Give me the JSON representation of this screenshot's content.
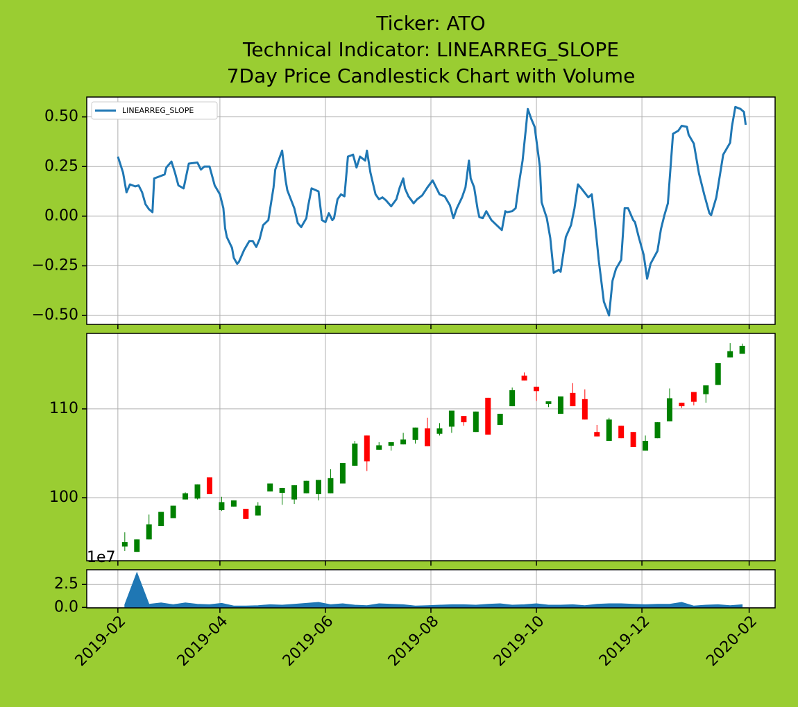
{
  "chart_data": [
    {
      "type": "line",
      "title": [
        "Ticker: ATO",
        "Technical Indicator: LINEARREG_SLOPE",
        "7Day Price Candlestick Chart with Volume"
      ],
      "legend": "upper left",
      "grid": true,
      "x": [
        "2019-02-01",
        "2019-02-04",
        "2019-02-06",
        "2019-02-08",
        "2019-02-11",
        "2019-02-13",
        "2019-02-15",
        "2019-02-17",
        "2019-02-19",
        "2019-02-21",
        "2019-02-22",
        "2019-02-25",
        "2019-02-28",
        "2019-03-01",
        "2019-03-04",
        "2019-03-06",
        "2019-03-08",
        "2019-03-11",
        "2019-03-14",
        "2019-03-19",
        "2019-03-21",
        "2019-03-23",
        "2019-03-26",
        "2019-03-29",
        "2019-04-01",
        "2019-04-03",
        "2019-04-04",
        "2019-04-05",
        "2019-04-08",
        "2019-04-09",
        "2019-04-11",
        "2019-04-12",
        "2019-04-15",
        "2019-04-18",
        "2019-04-20",
        "2019-04-22",
        "2019-04-24",
        "2019-04-26",
        "2019-04-29",
        "2019-05-02",
        "2019-05-03",
        "2019-05-07",
        "2019-05-09",
        "2019-05-10",
        "2019-05-14",
        "2019-05-16",
        "2019-05-18",
        "2019-05-21",
        "2019-05-22",
        "2019-05-24",
        "2019-05-28",
        "2019-05-30",
        "2019-06-01",
        "2019-06-03",
        "2019-06-05",
        "2019-06-06",
        "2019-06-08",
        "2019-06-10",
        "2019-06-12",
        "2019-06-14",
        "2019-06-17",
        "2019-06-19",
        "2019-06-21",
        "2019-06-24",
        "2019-06-25",
        "2019-06-27",
        "2019-06-30",
        "2019-07-02",
        "2019-07-04",
        "2019-07-06",
        "2019-07-09",
        "2019-07-12",
        "2019-07-14",
        "2019-07-16",
        "2019-07-17",
        "2019-07-19",
        "2019-07-22",
        "2019-07-24",
        "2019-07-27",
        "2019-07-30",
        "2019-08-02",
        "2019-08-06",
        "2019-08-09",
        "2019-08-12",
        "2019-08-14",
        "2019-08-16",
        "2019-08-19",
        "2019-08-21",
        "2019-08-23",
        "2019-08-24",
        "2019-08-26",
        "2019-08-28",
        "2019-08-29",
        "2019-08-31",
        "2019-09-02",
        "2019-09-05",
        "2019-09-08",
        "2019-09-11",
        "2019-09-13",
        "2019-09-14",
        "2019-09-17",
        "2019-09-19",
        "2019-09-21",
        "2019-09-23",
        "2019-09-25",
        "2019-09-26",
        "2019-09-28",
        "2019-09-30",
        "2019-10-03",
        "2019-10-04",
        "2019-10-07",
        "2019-10-09",
        "2019-10-11",
        "2019-10-14",
        "2019-10-15",
        "2019-10-18",
        "2019-10-21",
        "2019-10-23",
        "2019-10-25",
        "2019-10-27",
        "2019-10-31",
        "2019-11-02",
        "2019-11-04",
        "2019-11-06",
        "2019-11-09",
        "2019-11-12",
        "2019-11-14",
        "2019-11-16",
        "2019-11-19",
        "2019-11-21",
        "2019-11-23",
        "2019-11-26",
        "2019-11-27",
        "2019-11-29",
        "2019-12-02",
        "2019-12-04",
        "2019-12-06",
        "2019-12-10",
        "2019-12-12",
        "2019-12-14",
        "2019-12-16",
        "2019-12-19",
        "2019-12-22",
        "2019-12-24",
        "2019-12-27",
        "2019-12-28",
        "2019-12-31",
        "2020-01-03",
        "2020-01-06",
        "2020-01-09",
        "2020-01-10",
        "2020-01-13",
        "2020-01-17",
        "2020-01-21",
        "2020-01-22",
        "2020-01-24",
        "2020-01-27",
        "2020-01-29",
        "2020-01-30"
      ],
      "series": [
        {
          "name": "LINEARREG_SLOPE",
          "color": "#1f77b4",
          "values": [
            0.3,
            0.22,
            0.12,
            0.16,
            0.15,
            0.155,
            0.12,
            0.06,
            0.035,
            0.02,
            0.19,
            0.2,
            0.21,
            0.245,
            0.275,
            0.22,
            0.155,
            0.14,
            0.265,
            0.27,
            0.235,
            0.25,
            0.25,
            0.155,
            0.11,
            0.04,
            -0.06,
            -0.105,
            -0.16,
            -0.21,
            -0.24,
            -0.23,
            -0.17,
            -0.125,
            -0.125,
            -0.155,
            -0.115,
            -0.045,
            -0.02,
            0.145,
            0.235,
            0.33,
            0.18,
            0.13,
            0.04,
            -0.035,
            -0.055,
            -0.01,
            0.05,
            0.14,
            0.125,
            -0.02,
            -0.03,
            0.015,
            -0.02,
            -0.01,
            0.085,
            0.11,
            0.1,
            0.3,
            0.31,
            0.245,
            0.3,
            0.28,
            0.33,
            0.22,
            0.11,
            0.085,
            0.095,
            0.08,
            0.05,
            0.085,
            0.145,
            0.19,
            0.14,
            0.1,
            0.065,
            0.085,
            0.105,
            0.145,
            0.18,
            0.11,
            0.1,
            0.055,
            -0.01,
            0.04,
            0.095,
            0.145,
            0.28,
            0.19,
            0.145,
            0.035,
            -0.005,
            -0.01,
            0.025,
            -0.02,
            -0.045,
            -0.07,
            0.025,
            0.02,
            0.025,
            0.04,
            0.17,
            0.28,
            0.45,
            0.54,
            0.49,
            0.45,
            0.25,
            0.07,
            -0.01,
            -0.11,
            -0.285,
            -0.27,
            -0.28,
            -0.105,
            -0.045,
            0.04,
            0.16,
            0.14,
            0.095,
            0.11,
            -0.045,
            -0.22,
            -0.43,
            -0.5,
            -0.325,
            -0.265,
            -0.22,
            0.04,
            0.04,
            -0.02,
            -0.03,
            -0.1,
            -0.195,
            -0.315,
            -0.24,
            -0.175,
            -0.065,
            0.005,
            0.065,
            0.415,
            0.43,
            0.455,
            0.45,
            0.41,
            0.365,
            0.215,
            0.11,
            0.015,
            0.005,
            0.095,
            0.31,
            0.37,
            0.45,
            0.55,
            0.54,
            0.525,
            0.46
          ]
        }
      ],
      "ylim": [
        -0.545,
        0.6
      ],
      "yticks": [
        {
          "value": 0.5,
          "label": "0.50"
        },
        {
          "value": 0.25,
          "label": "0.25"
        },
        {
          "value": 0,
          "label": "0.00"
        },
        {
          "value": -0.25,
          "label": "−0.25"
        },
        {
          "value": -0.5,
          "label": "−0.50"
        }
      ]
    },
    {
      "type": "candlestick",
      "grid": true,
      "up_color": "green",
      "down_color": "red",
      "x": [
        "2019-02-05",
        "2019-02-12",
        "2019-02-19",
        "2019-02-26",
        "2019-03-05",
        "2019-03-12",
        "2019-03-19",
        "2019-03-26",
        "2019-04-02",
        "2019-04-09",
        "2019-04-16",
        "2019-04-23",
        "2019-04-30",
        "2019-05-07",
        "2019-05-14",
        "2019-05-21",
        "2019-05-28",
        "2019-06-04",
        "2019-06-11",
        "2019-06-18",
        "2019-06-25",
        "2019-07-02",
        "2019-07-09",
        "2019-07-16",
        "2019-07-23",
        "2019-07-30",
        "2019-08-06",
        "2019-08-13",
        "2019-08-20",
        "2019-08-27",
        "2019-09-03",
        "2019-09-10",
        "2019-09-17",
        "2019-09-24",
        "2019-10-01",
        "2019-10-08",
        "2019-10-15",
        "2019-10-22",
        "2019-10-29",
        "2019-11-05",
        "2019-11-12",
        "2019-11-19",
        "2019-11-26",
        "2019-12-03",
        "2019-12-10",
        "2019-12-17",
        "2019-12-24",
        "2019-12-31",
        "2020-01-07",
        "2020-01-14",
        "2020-01-21",
        "2020-01-28"
      ],
      "open": [
        94.5,
        93.9,
        95.3,
        96.8,
        97.7,
        99.8,
        99.9,
        102.3,
        98.6,
        99.0,
        98.75,
        98.0,
        100.7,
        100.55,
        99.8,
        100.5,
        100.4,
        100.5,
        101.6,
        103.6,
        107.0,
        105.4,
        105.85,
        106.0,
        106.5,
        107.8,
        107.2,
        108.0,
        109.2,
        107.4,
        111.25,
        108.2,
        110.3,
        113.75,
        112.5,
        110.55,
        109.45,
        111.8,
        111.1,
        107.4,
        106.4,
        108.1,
        107.4,
        105.3,
        106.7,
        108.6,
        110.7,
        111.9,
        111.65,
        112.7,
        115.8,
        116.2
      ],
      "high": [
        96.1,
        95.3,
        98.1,
        98.4,
        99.1,
        100.6,
        101.5,
        102.3,
        100.1,
        99.7,
        98.75,
        99.5,
        101.6,
        101.1,
        101.4,
        101.9,
        102.0,
        103.2,
        103.9,
        106.4,
        107.0,
        106.25,
        106.25,
        107.3,
        107.9,
        109.0,
        108.4,
        109.8,
        109.2,
        109.7,
        111.25,
        109.45,
        112.4,
        114.1,
        112.5,
        110.85,
        111.4,
        112.9,
        112.2,
        108.2,
        109.0,
        108.1,
        107.4,
        107.0,
        108.5,
        112.3,
        110.7,
        111.9,
        112.65,
        115.15,
        117.4,
        117.35
      ],
      "low": [
        94.0,
        93.9,
        95.3,
        96.8,
        97.7,
        99.8,
        99.8,
        100.4,
        98.5,
        99.0,
        97.6,
        98.0,
        100.7,
        99.2,
        99.3,
        100.5,
        99.7,
        100.5,
        101.6,
        103.6,
        103.0,
        105.4,
        105.3,
        106.0,
        106.1,
        105.8,
        107.0,
        107.3,
        108.1,
        107.4,
        107.1,
        108.2,
        110.3,
        113.2,
        110.9,
        110.2,
        109.45,
        110.3,
        108.8,
        106.9,
        106.4,
        106.7,
        105.7,
        105.3,
        106.7,
        108.6,
        110.1,
        110.4,
        110.7,
        112.7,
        115.8,
        116.2
      ],
      "close": [
        95.0,
        95.3,
        97.0,
        98.4,
        99.1,
        100.5,
        101.5,
        100.4,
        99.5,
        99.7,
        97.6,
        99.1,
        101.6,
        101.1,
        101.4,
        101.9,
        102.0,
        102.2,
        103.9,
        106.1,
        104.1,
        105.9,
        106.25,
        106.55,
        107.9,
        105.8,
        107.8,
        109.8,
        108.5,
        109.7,
        107.1,
        109.45,
        112.1,
        113.2,
        112.0,
        110.85,
        111.4,
        110.3,
        108.8,
        106.9,
        108.8,
        106.7,
        105.7,
        106.4,
        108.5,
        111.2,
        110.3,
        110.8,
        112.65,
        115.15,
        116.5,
        117.1
      ],
      "ylim": [
        92.9,
        118.5
      ],
      "yticks": [
        100,
        110
      ]
    },
    {
      "type": "area",
      "grid": true,
      "color": "#1f77b4",
      "offset_label": "1e7",
      "values": [
        0.3,
        3.8,
        0.35,
        0.5,
        0.3,
        0.5,
        0.35,
        0.3,
        0.45,
        0.15,
        0.15,
        0.2,
        0.3,
        0.25,
        0.35,
        0.45,
        0.55,
        0.3,
        0.4,
        0.25,
        0.2,
        0.4,
        0.35,
        0.3,
        0.15,
        0.2,
        0.25,
        0.3,
        0.3,
        0.25,
        0.35,
        0.4,
        0.25,
        0.3,
        0.4,
        0.25,
        0.25,
        0.3,
        0.2,
        0.35,
        0.4,
        0.4,
        0.35,
        0.3,
        0.35,
        0.35,
        0.55,
        0.15,
        0.25,
        0.3,
        0.2,
        0.3
      ],
      "ylim": [
        -0.05,
        4.1
      ],
      "yticks": [
        {
          "value": 0,
          "label": "0.0"
        },
        2.5
      ],
      "xlim": [
        "2019-01-14",
        "2020-02-16"
      ],
      "xticks": [
        {
          "value": "2019-02-01",
          "label": "2019-02"
        },
        {
          "value": "2019-04-01",
          "label": "2019-04"
        },
        {
          "value": "2019-06-01",
          "label": "2019-06"
        },
        {
          "value": "2019-08-01",
          "label": "2019-08"
        },
        {
          "value": "2019-10-01",
          "label": "2019-10"
        },
        {
          "value": "2019-12-01",
          "label": "2019-12"
        },
        {
          "value": "2020-02-01",
          "label": "2020-02"
        }
      ]
    }
  ]
}
